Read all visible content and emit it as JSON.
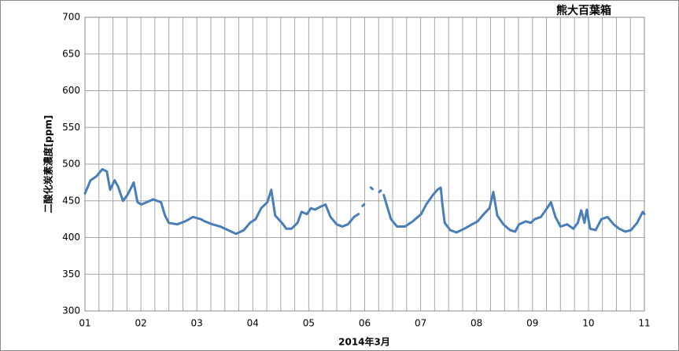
{
  "chart_data": {
    "type": "line",
    "title": "熊大百葉箱",
    "x_label": "2014年3月",
    "y_label": "二酸化炭素濃度[ppm]",
    "x": [
      1.0,
      1.1,
      1.2,
      1.31,
      1.39,
      1.45,
      1.53,
      1.59,
      1.68,
      1.76,
      1.84,
      1.87,
      1.94,
      2.01,
      2.1,
      2.22,
      2.36,
      2.43,
      2.5,
      2.65,
      2.79,
      2.93,
      3.07,
      3.14,
      3.28,
      3.42,
      3.56,
      3.7,
      3.84,
      3.95,
      4.05,
      4.15,
      4.26,
      4.33,
      4.4,
      4.52,
      4.6,
      4.69,
      4.8,
      4.87,
      4.97,
      5.04,
      5.11,
      5.21,
      5.3,
      5.39,
      5.5,
      5.6,
      5.7,
      5.81,
      5.89,
      5.92,
      5.96,
      5.99,
      6.05,
      6.11,
      6.14,
      6.2,
      6.26,
      6.29,
      6.31,
      6.34,
      6.47,
      6.58,
      6.72,
      6.86,
      7.01,
      7.1,
      7.22,
      7.3,
      7.36,
      7.39,
      7.43,
      7.53,
      7.64,
      7.78,
      7.92,
      8.02,
      8.13,
      8.23,
      8.3,
      8.37,
      8.48,
      8.6,
      8.69,
      8.76,
      8.88,
      8.97,
      9.04,
      9.15,
      9.26,
      9.33,
      9.41,
      9.5,
      9.62,
      9.73,
      9.81,
      9.87,
      9.93,
      9.97,
      10.03,
      10.13,
      10.23,
      10.34,
      10.45,
      10.55,
      10.66,
      10.76,
      10.87,
      10.97,
      11.0
    ],
    "series": [
      {
        "name": "二酸化炭素濃度",
        "color": "#4a7ebb",
        "values": [
          460,
          478,
          483,
          493,
          490,
          465,
          478,
          470,
          450,
          458,
          470,
          475,
          448,
          445,
          448,
          452,
          448,
          430,
          420,
          418,
          422,
          428,
          425,
          422,
          418,
          415,
          410,
          405,
          410,
          420,
          425,
          440,
          448,
          465,
          430,
          420,
          412,
          412,
          420,
          435,
          432,
          440,
          438,
          442,
          445,
          428,
          418,
          415,
          418,
          428,
          432,
          null,
          443,
          445,
          null,
          468,
          466,
          null,
          462,
          464,
          null,
          458,
          425,
          415,
          415,
          422,
          432,
          445,
          458,
          465,
          468,
          445,
          420,
          410,
          407,
          412,
          418,
          422,
          432,
          440,
          462,
          430,
          418,
          410,
          408,
          418,
          422,
          420,
          425,
          428,
          440,
          448,
          428,
          415,
          418,
          412,
          420,
          437,
          420,
          438,
          412,
          410,
          425,
          428,
          418,
          412,
          408,
          410,
          420,
          435,
          432
        ]
      }
    ],
    "xlim": [
      1,
      11
    ],
    "xticks": [
      {
        "value": 1,
        "label": "01"
      },
      {
        "value": 2,
        "label": "02"
      },
      {
        "value": 3,
        "label": "03"
      },
      {
        "value": 4,
        "label": "04"
      },
      {
        "value": 5,
        "label": "05"
      },
      {
        "value": 6,
        "label": "06"
      },
      {
        "value": 7,
        "label": "07"
      },
      {
        "value": 8,
        "label": "08"
      },
      {
        "value": 9,
        "label": "09"
      },
      {
        "value": 10,
        "label": "10"
      },
      {
        "value": 11,
        "label": "11"
      }
    ],
    "x_minor_grid": [
      1.25,
      1.5,
      1.75,
      2.25,
      2.5,
      2.75,
      3.25,
      3.5,
      3.75,
      4.25,
      4.5,
      4.75,
      5.25,
      5.5,
      5.75,
      6.25,
      6.5,
      6.75,
      7.25,
      7.5,
      7.75,
      8.25,
      8.5,
      8.75,
      9.25,
      9.5,
      9.75,
      10.25,
      10.5,
      10.75
    ],
    "ylim": [
      300,
      700
    ],
    "yticks": [
      300,
      350,
      400,
      450,
      500,
      550,
      600,
      650,
      700
    ],
    "grid": true
  }
}
